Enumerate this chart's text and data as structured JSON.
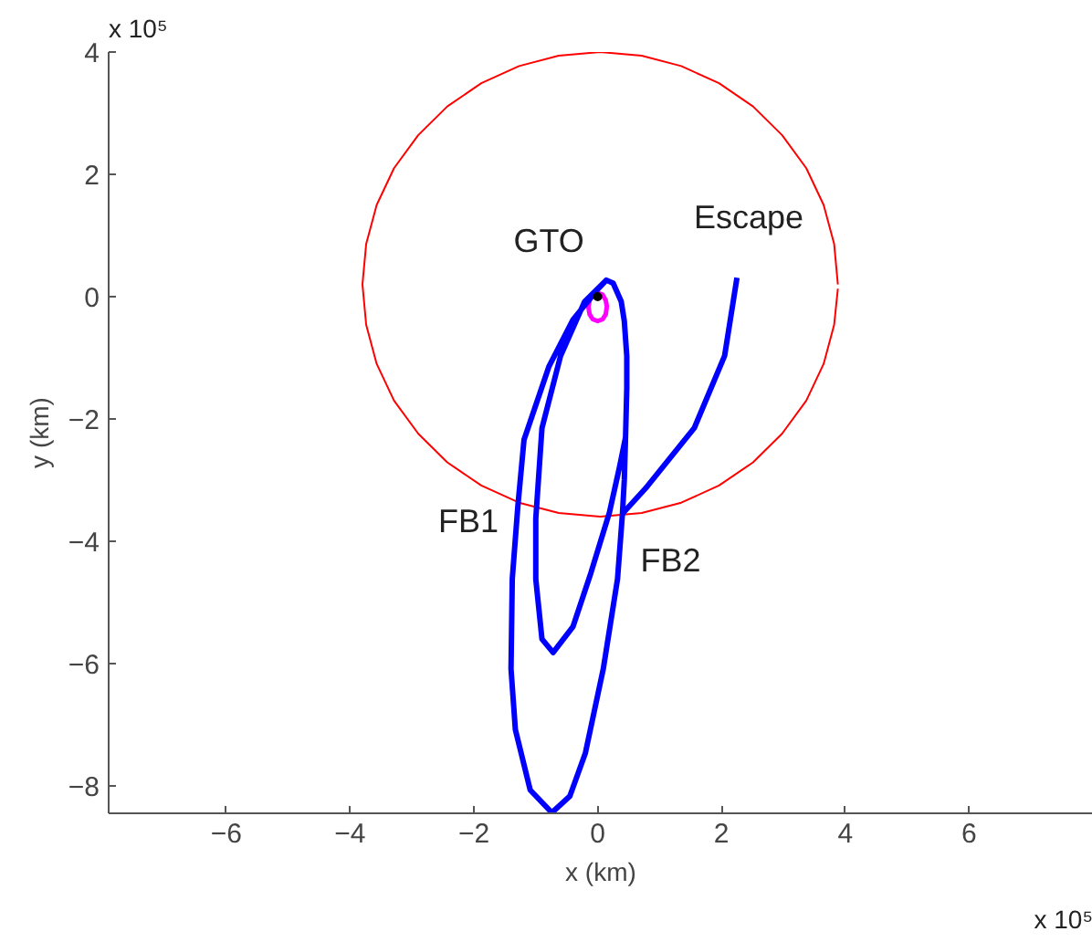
{
  "chart_data": {
    "type": "line",
    "xlabel": "x (km)",
    "ylabel": "y (km)",
    "xlim": [
      -7.9,
      8.0
    ],
    "ylim": [
      -8.45,
      4.0
    ],
    "xticks": [
      -6,
      -4,
      -2,
      0,
      2,
      4,
      6
    ],
    "yticks": [
      -8,
      -6,
      -4,
      -2,
      0,
      2,
      4
    ],
    "grid": false,
    "series": [
      {
        "color": "#ff0000",
        "x": [
          3.88,
          3.82,
          3.65,
          3.37,
          2.98,
          2.51,
          1.96,
          1.35,
          0.71,
          0.04,
          -0.63,
          -1.27,
          -1.88,
          -2.43,
          -2.9,
          -3.29,
          -3.57,
          -3.74,
          -3.8,
          -3.74,
          -3.57,
          -3.29,
          -2.9,
          -2.43,
          -1.88,
          -1.27,
          -0.63,
          0.04,
          0.71,
          1.35,
          1.96,
          2.51,
          2.98,
          3.37,
          3.65,
          3.82,
          3.88
        ],
        "values": [
          0.2,
          0.86,
          1.5,
          2.1,
          2.64,
          3.11,
          3.49,
          3.77,
          3.94,
          4.0,
          3.94,
          3.77,
          3.49,
          3.11,
          2.64,
          2.1,
          1.5,
          0.86,
          0.2,
          -0.46,
          -1.1,
          -1.7,
          -2.24,
          -2.71,
          -3.09,
          -3.37,
          -3.54,
          -3.6,
          -3.54,
          -3.37,
          -3.09,
          -2.71,
          -2.24,
          -1.7,
          -1.1,
          -0.46,
          0.13
        ]
      },
      {
        "color": "#ff00ff",
        "x": [
          0.15,
          0.13,
          0.08,
          0,
          -0.08,
          -0.13,
          -0.15,
          -0.13,
          -0.08,
          0,
          0.08,
          0.13,
          0.15
        ],
        "values": [
          -0.17,
          -0.06,
          0.03,
          0.06,
          0.03,
          -0.06,
          -0.17,
          -0.29,
          -0.37,
          -0.4,
          -0.37,
          -0.29,
          -0.15
        ]
      },
      {
        "color": "#0000ff",
        "x": [
          0.14,
          -0.21,
          -0.6,
          -0.9,
          -1.0,
          -1.0,
          -0.9,
          -0.72,
          -0.4,
          -0.11,
          0.19,
          0.35,
          0.45,
          0.47,
          0.47,
          0.43,
          0.38,
          0.25,
          0.14,
          0.0,
          -0.4,
          -0.79,
          -1.19,
          -1.29,
          -1.38,
          -1.4,
          -1.33,
          -1.09,
          -0.74,
          -0.45,
          -0.2,
          0.09,
          0.32,
          0.4,
          0.43,
          0.45
        ],
        "values": [
          0.27,
          -0.08,
          -0.97,
          -2.15,
          -3.63,
          -4.62,
          -5.6,
          -5.82,
          -5.4,
          -4.52,
          -3.53,
          -2.8,
          -2.3,
          -1.5,
          -0.97,
          -0.4,
          -0.08,
          0.22,
          0.27,
          0.12,
          -0.38,
          -1.15,
          -2.34,
          -3.43,
          -4.62,
          -6.09,
          -7.08,
          -8.07,
          -8.44,
          -8.17,
          -7.47,
          -6.09,
          -4.62,
          -3.55,
          -3.0,
          -2.3
        ]
      },
      {
        "color": "#0000ff",
        "x": [
          0.4,
          0.77,
          1.56,
          2.05,
          2.25
        ],
        "values": [
          -3.55,
          -3.14,
          -2.15,
          -0.97,
          0.31
        ]
      },
      {
        "type": "scatter",
        "color": "#000000",
        "x": [
          0
        ],
        "values": [
          0
        ]
      }
    ],
    "annotations": [
      "x 10⁵",
      "x 10⁵",
      "GTO",
      "Escape",
      "FB1",
      "FB2"
    ]
  }
}
